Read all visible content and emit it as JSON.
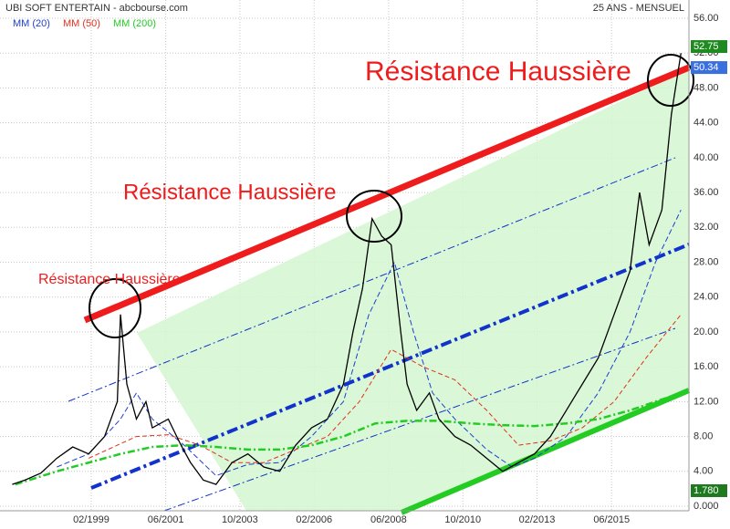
{
  "chart_data": {
    "type": "line",
    "title": "UBI SOFT ENTERTAIN - abcbourse.com",
    "subtitle": "25 ANS - MENSUEL",
    "price_color": "#000000",
    "x": [
      1996.6,
      1997.0,
      1997.5,
      1998.0,
      1998.5,
      1999.0,
      1999.5,
      1999.9,
      2000.0,
      2000.2,
      2000.5,
      2000.8,
      2001.0,
      2001.5,
      2001.9,
      2002.2,
      2002.6,
      2003.0,
      2003.5,
      2004.0,
      2004.5,
      2005.0,
      2005.5,
      2006.0,
      2006.5,
      2007.0,
      2007.3,
      2007.6,
      2007.9,
      2008.2,
      2008.5,
      2008.8,
      2009.0,
      2009.3,
      2009.7,
      2010.0,
      2010.5,
      2011.0,
      2011.5,
      2012.0,
      2012.5,
      2013.0,
      2013.5,
      2014.0,
      2014.5,
      2015.0,
      2015.5,
      2016.0,
      2016.3,
      2016.6,
      2017.0,
      2017.3,
      2017.6
    ],
    "values": [
      2.5,
      3.0,
      3.8,
      5.5,
      6.8,
      6.0,
      8.0,
      12,
      22,
      14,
      10,
      12,
      9,
      10,
      7,
      5,
      3,
      2.5,
      5,
      6,
      4.5,
      4,
      7,
      9,
      10,
      14,
      20,
      25,
      33,
      31,
      30,
      20,
      14,
      11,
      13,
      10,
      8,
      7,
      5.5,
      4,
      5,
      6,
      8,
      11,
      14,
      17,
      22,
      27,
      36,
      30,
      34,
      45,
      52
    ],
    "series": [
      {
        "name": "MM (20)",
        "color": "#1f3fcf",
        "dash": "6 3",
        "x": [
          1998,
          1999,
          2000,
          2000.5,
          2001,
          2002,
          2003,
          2004,
          2005,
          2006,
          2007,
          2007.8,
          2008.6,
          2009.2,
          2009.8,
          2010.5,
          2011.5,
          2012.3,
          2013,
          2014,
          2015,
          2016,
          2016.8,
          2017.6
        ],
        "values": [
          4.5,
          6,
          10,
          13,
          10,
          7,
          3.5,
          4.8,
          5,
          8,
          12,
          22,
          28,
          20,
          13,
          10,
          6.5,
          4.5,
          5.5,
          8,
          13,
          20,
          28,
          34
        ]
      },
      {
        "name": "MM (50)",
        "color": "#e0301e",
        "dash": "5 3",
        "x": [
          1999,
          2000.5,
          2001.5,
          2002.5,
          2003.5,
          2004.5,
          2005.5,
          2006.5,
          2007.5,
          2008.5,
          2009.5,
          2010.5,
          2011.5,
          2012.5,
          2013.5,
          2014.5,
          2015.5,
          2016.5,
          2017.6
        ],
        "values": [
          5.5,
          8,
          8.2,
          7,
          5,
          5,
          6.5,
          8,
          12,
          18,
          16,
          14.5,
          11,
          7,
          7.5,
          9,
          12,
          17,
          22
        ]
      },
      {
        "name": "MM (200)",
        "color": "#22cc22",
        "dash": "8 3 2 3",
        "x": [
          1996.7,
          1998,
          1999,
          2000,
          2001,
          2002,
          2003,
          2004,
          2005,
          2006,
          2007,
          2008,
          2009,
          2010,
          2011,
          2012,
          2013,
          2014,
          2015,
          2016,
          2017.6
        ],
        "values": [
          2.5,
          4,
          5,
          6,
          6.8,
          7,
          6.8,
          6.5,
          6.5,
          7,
          8,
          9.5,
          9.8,
          9.8,
          9.5,
          9.3,
          9.2,
          9.5,
          10,
          11,
          13
        ]
      }
    ],
    "xlim": [
      1996.56,
      2017.85
    ],
    "xticks": [
      {
        "value": 1999.08,
        "label": "02/1999"
      },
      {
        "value": 2001.42,
        "label": "06/2001"
      },
      {
        "value": 2003.75,
        "label": "10/2003"
      },
      {
        "value": 2006.08,
        "label": "02/2006"
      },
      {
        "value": 2008.42,
        "label": "06/2008"
      },
      {
        "value": 2010.75,
        "label": "10/2010"
      },
      {
        "value": 2013.08,
        "label": "02/2013"
      },
      {
        "value": 2015.42,
        "label": "06/2015"
      }
    ],
    "ylim": [
      0,
      56
    ],
    "yticks": [
      {
        "value": 0,
        "label": "0.000"
      },
      {
        "value": 4,
        "label": "4.00"
      },
      {
        "value": 8,
        "label": "8.00"
      },
      {
        "value": 12,
        "label": "12.00"
      },
      {
        "value": 16,
        "label": "16.00"
      },
      {
        "value": 20,
        "label": "20.00"
      },
      {
        "value": 24,
        "label": "24.00"
      },
      {
        "value": 28,
        "label": "28.00"
      },
      {
        "value": 32,
        "label": "32.00"
      },
      {
        "value": 36,
        "label": "36.00"
      },
      {
        "value": 40,
        "label": "40.00"
      },
      {
        "value": 44,
        "label": "44.00"
      },
      {
        "value": 48,
        "label": "48.00"
      },
      {
        "value": 52,
        "label": "52.00"
      },
      {
        "value": 56,
        "label": "56.00"
      }
    ],
    "grid": true,
    "markers": [
      {
        "value": 52.75,
        "color": "#1f8a1f"
      },
      {
        "value": 50.34,
        "color": "#3a6fe0"
      },
      {
        "value": 1.78,
        "label": "1.780",
        "color": "#1f7a1f"
      }
    ],
    "annotations": [
      "Résistance Haussière",
      "Résistance Haussière",
      "Résistance Haussière"
    ]
  }
}
